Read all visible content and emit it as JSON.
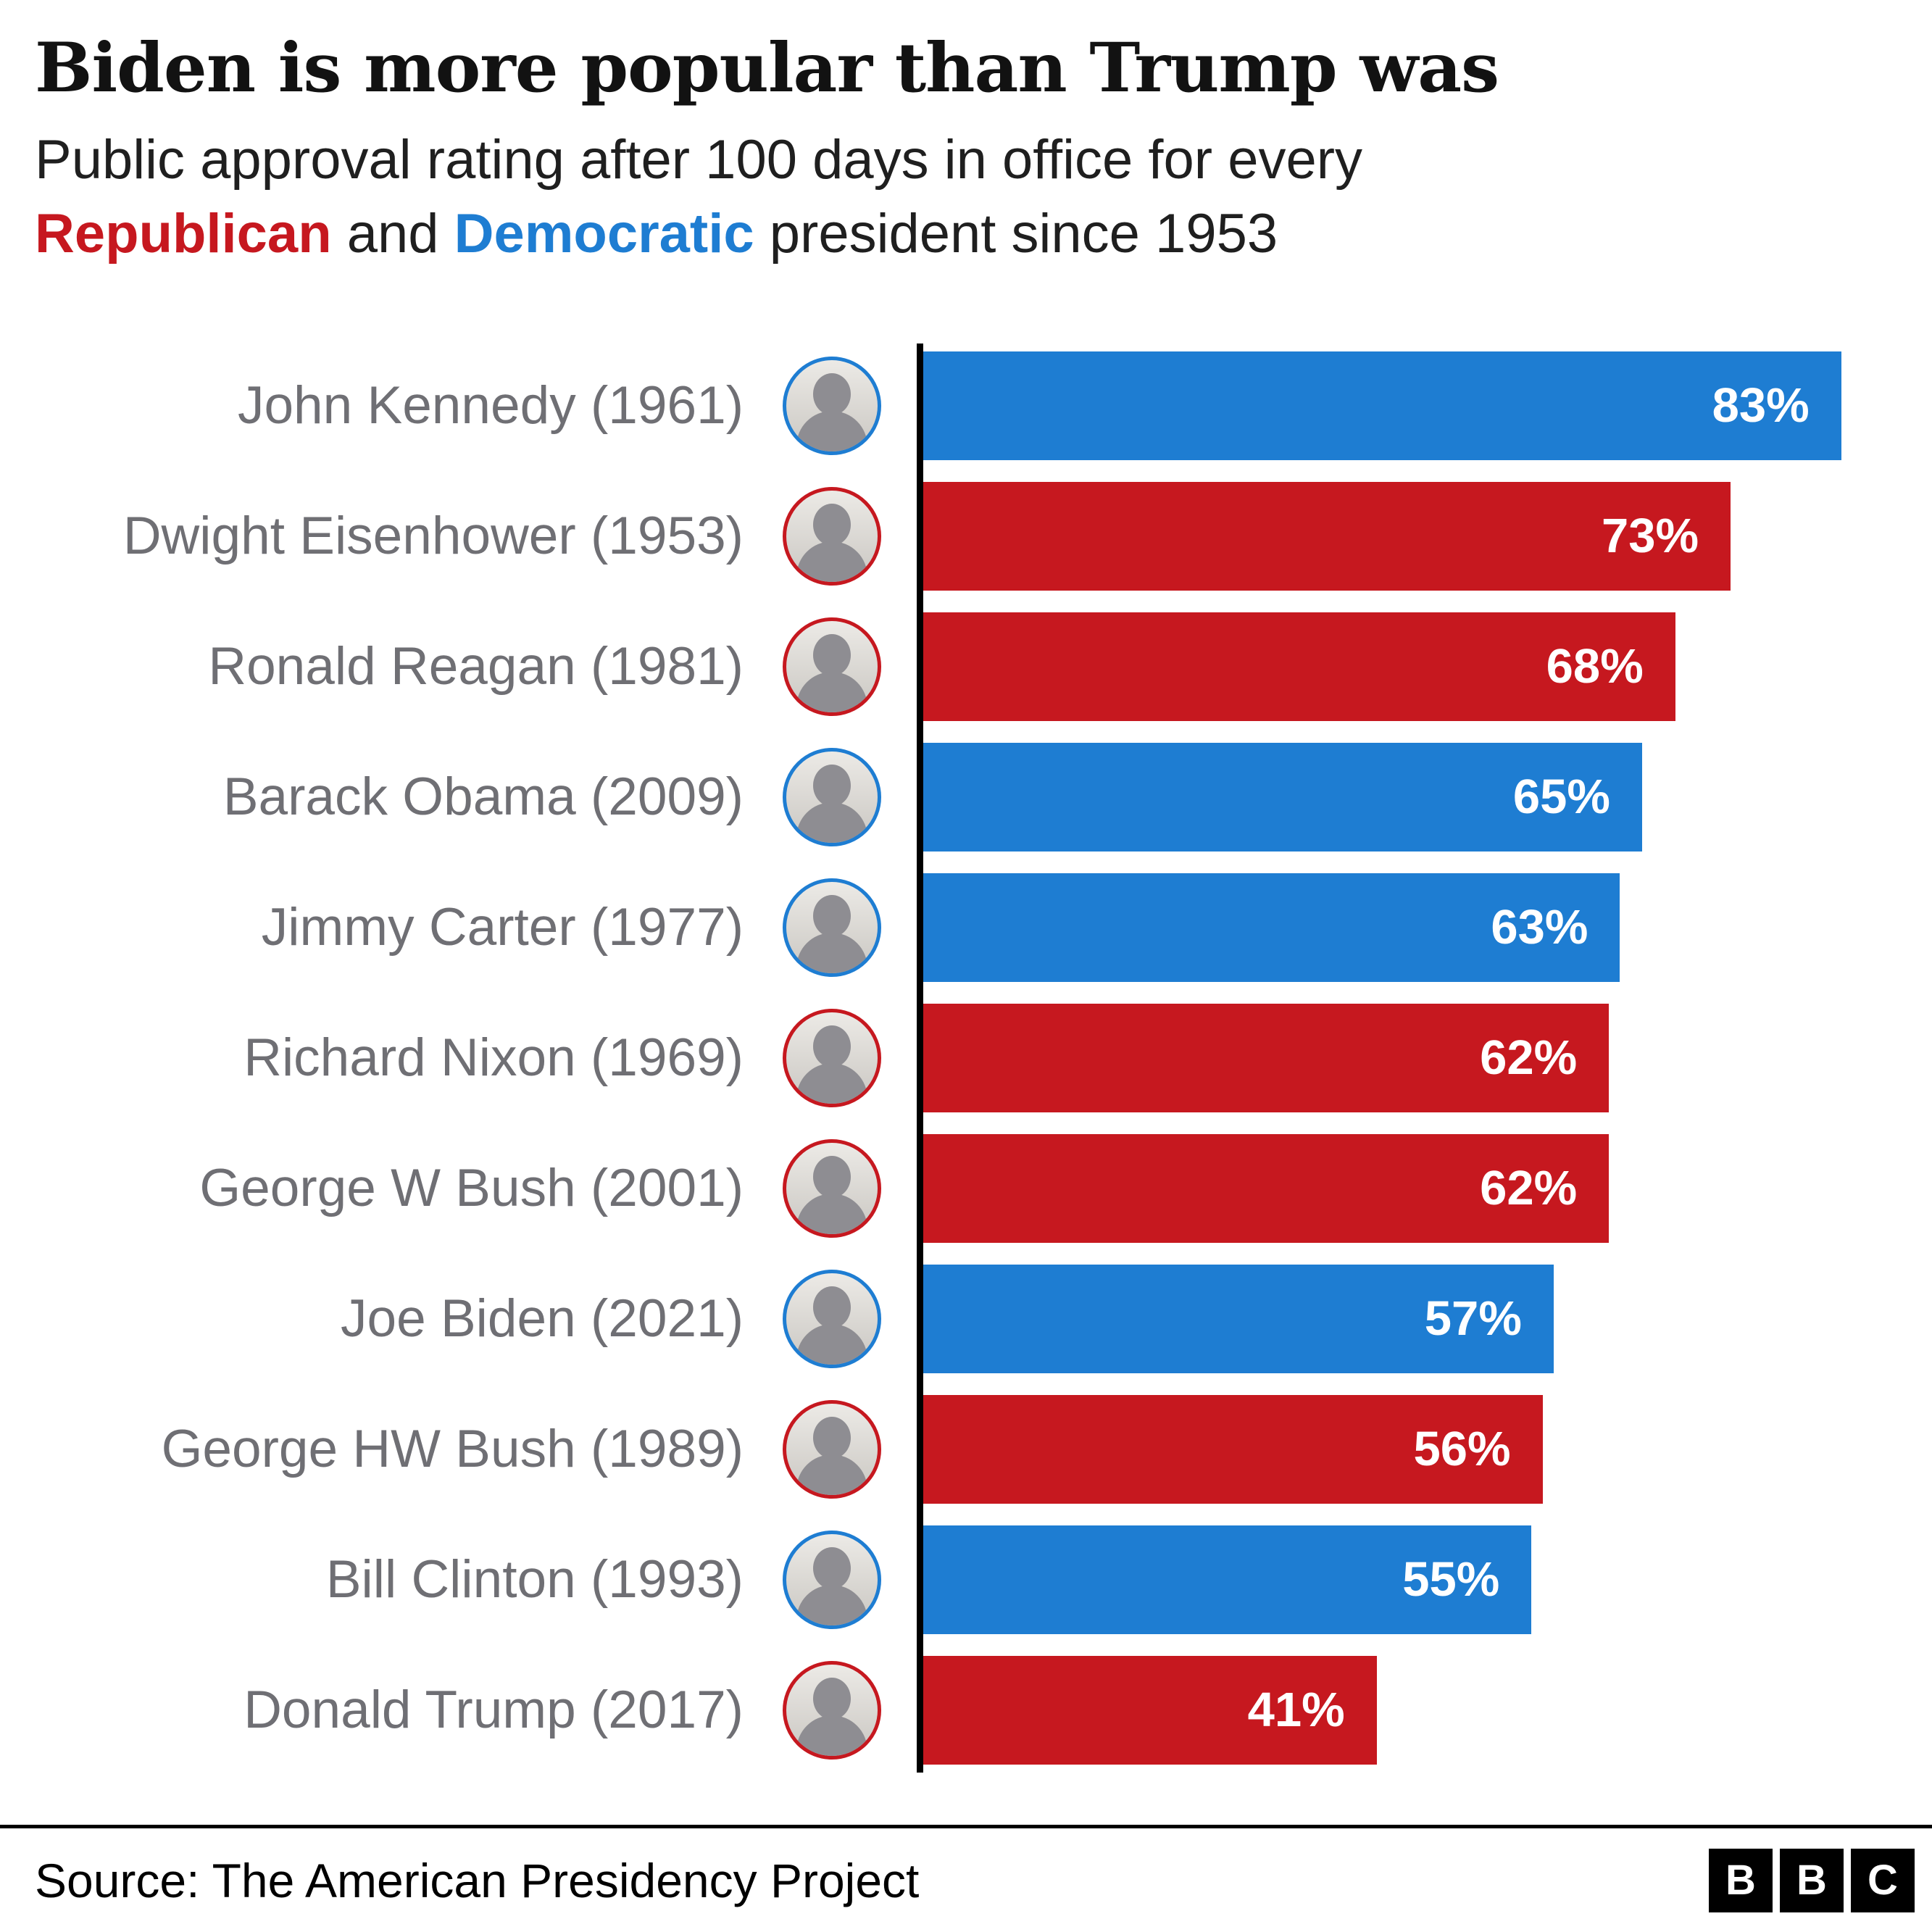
{
  "title": "Biden is more popular than Trump was",
  "subtitle": {
    "line1": "Public approval rating after 100 days in office for every",
    "line2_republican": "Republican",
    "line2_mid": " and ",
    "line2_democratic": "Democratic",
    "line2_suffix": " president since 1953"
  },
  "colors": {
    "republican": "#c6181f",
    "democrat": "#1e7dd2",
    "label_gray": "#6f6f74",
    "axis_black": "#000000",
    "value_text": "#ffffff"
  },
  "chart_data": {
    "type": "bar",
    "orientation": "horizontal",
    "title": "Biden is more popular than Trump was",
    "subtitle": "Public approval rating after 100 days in office for every Republican and Democratic president since 1953",
    "value_unit": "%",
    "xlim": [
      0,
      83
    ],
    "legend": "color encodes party: red = Republican, blue = Democratic",
    "rows": [
      {
        "label": "John Kennedy (1961)",
        "value": 83,
        "value_label": "83%",
        "party": "democrat"
      },
      {
        "label": "Dwight Eisenhower (1953)",
        "value": 73,
        "value_label": "73%",
        "party": "republican"
      },
      {
        "label": "Ronald Reagan (1981)",
        "value": 68,
        "value_label": "68%",
        "party": "republican"
      },
      {
        "label": "Barack Obama (2009)",
        "value": 65,
        "value_label": "65%",
        "party": "democrat"
      },
      {
        "label": "Jimmy Carter (1977)",
        "value": 63,
        "value_label": "63%",
        "party": "democrat"
      },
      {
        "label": "Richard Nixon (1969)",
        "value": 62,
        "value_label": "62%",
        "party": "republican"
      },
      {
        "label": "George W Bush (2001)",
        "value": 62,
        "value_label": "62%",
        "party": "republican"
      },
      {
        "label": "Joe Biden (2021)",
        "value": 57,
        "value_label": "57%",
        "party": "democrat"
      },
      {
        "label": "George HW Bush (1989)",
        "value": 56,
        "value_label": "56%",
        "party": "republican"
      },
      {
        "label": "Bill Clinton (1993)",
        "value": 55,
        "value_label": "55%",
        "party": "democrat"
      },
      {
        "label": "Donald Trump (2017)",
        "value": 41,
        "value_label": "41%",
        "party": "republican"
      }
    ]
  },
  "footer": {
    "source": "Source: The American Presidency Project",
    "logo_letters": [
      "B",
      "B",
      "C"
    ]
  }
}
